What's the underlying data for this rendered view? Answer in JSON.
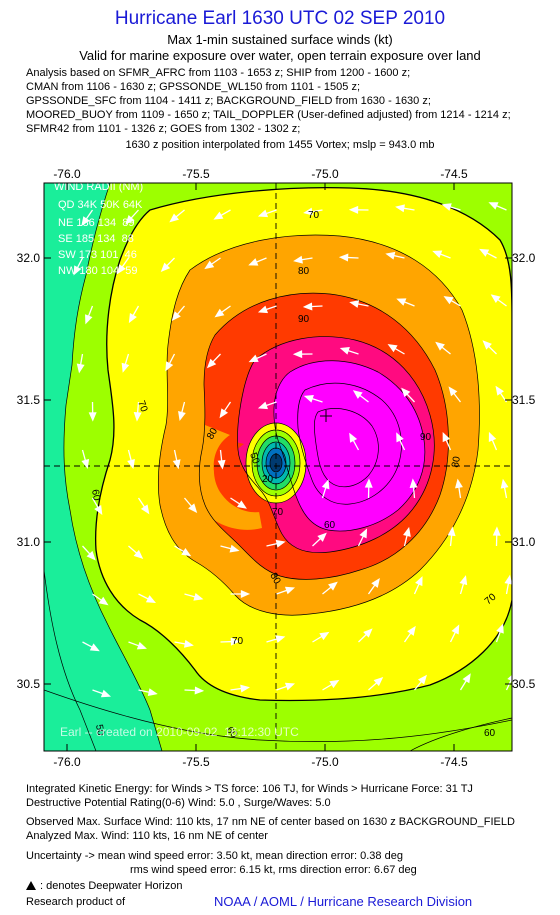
{
  "header": {
    "title": "Hurricane Earl 1630 UTC 02 SEP 2010",
    "subtitle1": "Max 1-min sustained surface winds (kt)",
    "subtitle2": "Valid for marine exposure over water, open terrain exposure over land",
    "analysis_lines": [
      "Analysis based on SFMR_AFRC from 1103 - 1653 z; SHIP from 1200 - 1600 z;",
      "CMAN from 1106 - 1630 z; GPSSONDE_WL150 from 1101 - 1505 z;",
      "GPSSONDE_SFC from 1104 - 1411 z; BACKGROUND_FIELD from 1630 - 1630 z;",
      "MOORED_BUOY from 1109 - 1650 z; TAIL_DOPPLER (User-defined adjusted) from 1214 - 1214 z;",
      "SFMR42 from 1101 - 1326 z; GOES from 1302 - 1302 z;"
    ],
    "position_line": "1630 z position interpolated from 1455 Vortex; mslp = 943.0 mb"
  },
  "map": {
    "lon_ticks": [
      "-76.0",
      "-75.5",
      "-75.0",
      "-74.5"
    ],
    "lat_ticks": [
      "32.0",
      "31.5",
      "31.0",
      "30.5"
    ],
    "wind_radii": {
      "title": "WIND RADII (NM)",
      "header": "QD 34K 50K 64K",
      "rows": [
        "NE 186 134  89",
        "SE 185 134  88",
        "SW 173 101  46",
        "NW 180 104  59"
      ]
    },
    "contour_labels": [
      "70",
      "80",
      "90",
      "70",
      "80",
      "70",
      "60",
      "80",
      "70",
      "80",
      "90",
      "20",
      "50",
      "60",
      "70",
      "60",
      "60",
      "50"
    ],
    "watermark": "Earl -- created on 2010-09-02  16:12:30 UTC",
    "colors": {
      "c50": "#1aee9a",
      "c60": "#9dff00",
      "c70": "#ffff00",
      "c80": "#ffa500",
      "c90": "#ff3a00",
      "c100": "#ff0a80",
      "c110": "#ff00ff",
      "eye": "#003a70"
    }
  },
  "footer": {
    "lines": [
      "Integrated Kinetic Energy:  for Winds > TS force: 106 TJ,  for Winds > Hurricane Force: 31 TJ",
      "Destructive Potential Rating(0-6)   Wind: 5.0 , Surge/Waves: 5.0",
      "Observed Max. Surface Wind: 110 kts, 17 nm NE of center based on 1630 z BACKGROUND_FIELD",
      "Analyzed Max. Wind: 110 kts, 16 nm NE of center",
      "Uncertainty -> mean wind speed error: 3.50 kt,   mean direction error: 0.38 deg",
      "rms wind speed error: 6.15 kt,    rms direction error: 6.67 deg"
    ],
    "deepwater": ": denotes Deepwater Horizon",
    "research": "Research product of",
    "credit": "NOAA / AOML / Hurricane Research Division"
  }
}
